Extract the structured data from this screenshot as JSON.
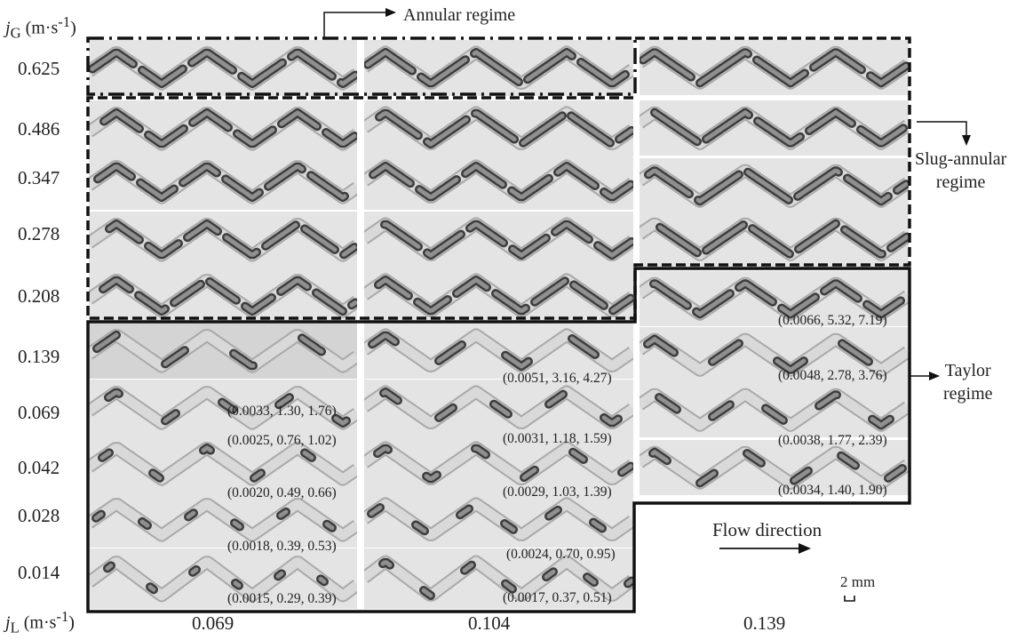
{
  "axes": {
    "y_title": "jG (m·s-1)",
    "x_title": "jL (m·s-1)",
    "jG_values": [
      "0.625",
      "0.486",
      "0.347",
      "0.278",
      "0.208",
      "0.139",
      "0.069",
      "0.042",
      "0.028",
      "0.014"
    ],
    "jL_values": [
      "0.069",
      "0.104",
      "0.139"
    ]
  },
  "regimes": {
    "annular": "Annular regime",
    "slug_annular": "Slug-annular\nregime",
    "taylor": "Taylor\nregime"
  },
  "annotations": {
    "col_0069": [
      {
        "jG": "0.139",
        "text": "(0.0033, 1.30, 1.76)"
      },
      {
        "jG": "0.069",
        "text": "(0.0025, 0.76, 1.02)"
      },
      {
        "jG": "0.042",
        "text": "(0.0020, 0.49, 0.66)"
      },
      {
        "jG": "0.028",
        "text": "(0.0018, 0.39, 0.53)"
      },
      {
        "jG": "0.014",
        "text": "(0.0015, 0.29, 0.39)"
      }
    ],
    "col_0104": [
      {
        "jG": "0.139",
        "text": "(0.0051, 3.16, 4.27)"
      },
      {
        "jG": "0.069",
        "text": "(0.0031, 1.18, 1.59)"
      },
      {
        "jG": "0.042",
        "text": "(0.0029, 1.03, 1.39)"
      },
      {
        "jG": "0.028",
        "text": "(0.0024, 0.70, 0.95)"
      },
      {
        "jG": "0.014",
        "text": "(0.0017, 0.37, 0.51)"
      }
    ],
    "col_0139": [
      {
        "jG": "0.208",
        "text": "(0.0066, 5.32, 7.19)"
      },
      {
        "jG": "0.139",
        "text": "(0.0048, 2.78, 3.76)"
      },
      {
        "jG": "0.069",
        "text": "(0.0038, 1.77, 2.39)"
      },
      {
        "jG": "0.042",
        "text": "(0.0034, 1.40, 1.90)"
      }
    ]
  },
  "flow_direction": "Flow direction",
  "scale_bar": "2 mm"
}
